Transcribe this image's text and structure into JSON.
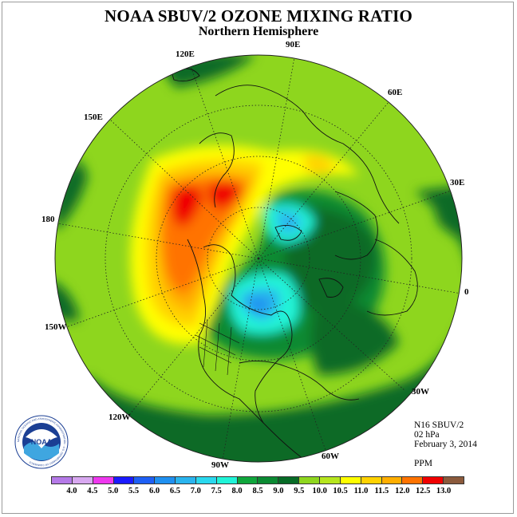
{
  "title": "NOAA SBUV/2 OZONE MIXING RATIO",
  "subtitle": "Northern Hemisphere",
  "longitude_labels": {
    "lon_90e": "90E",
    "lon_120e": "120E",
    "lon_60e": "60E",
    "lon_150e": "150E",
    "lon_30e": "30E",
    "lon_180": "180",
    "lon_0": "0",
    "lon_150w": "150W",
    "lon_30w": "30W",
    "lon_120w": "120W",
    "lon_60w": "60W",
    "lon_90w": "90W"
  },
  "info": {
    "instrument": "N16 SBUV/2",
    "level": "02 hPa",
    "date": "February 3, 2014",
    "units": "PPM"
  },
  "logo": {
    "text": "NOAA",
    "ring_text": "NATIONAL OCEANIC AND ATMOSPHERIC ADMINISTRATION · U.S. DEPARTMENT OF COMMERCE"
  },
  "colorbar": {
    "ticks": [
      "4.0",
      "4.5",
      "5.0",
      "5.5",
      "6.0",
      "6.5",
      "7.0",
      "7.5",
      "8.0",
      "8.5",
      "9.0",
      "9.5",
      "10.0",
      "10.5",
      "11.0",
      "11.5",
      "12.0",
      "12.5",
      "13.0"
    ],
    "colors": [
      "#b57ae8",
      "#d8a8f0",
      "#ee38ee",
      "#1a1aff",
      "#1e5ff5",
      "#1f90f0",
      "#2ab4ee",
      "#2ad8ee",
      "#20f4d8",
      "#0fa63c",
      "#0b8a32",
      "#076b26",
      "#8ed61e",
      "#b6e61e",
      "#ffff00",
      "#ffd200",
      "#ffae00",
      "#ff7300",
      "#f00000",
      "#8b5a3c"
    ]
  },
  "colors": {
    "background_green": "#8ed61e",
    "dark_green": "#076b26",
    "max_red": "#f00000"
  }
}
